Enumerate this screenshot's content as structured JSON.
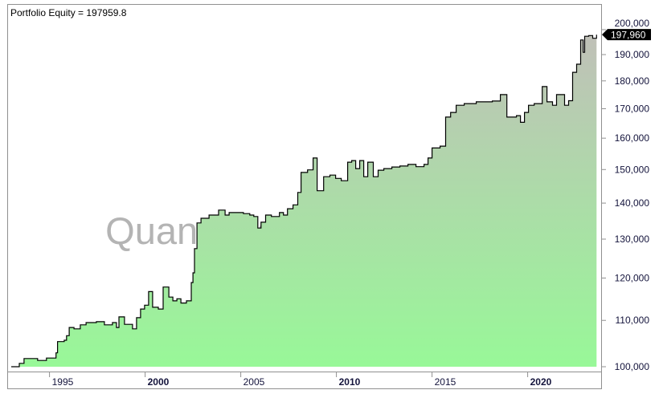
{
  "chart_data": {
    "type": "area",
    "title": "Portfolio Equity = 197959.8",
    "watermark": "QuantifiedStrategies.com",
    "y_scale": "log",
    "ylim": [
      100000,
      200000
    ],
    "xlim": [
      1993.0,
      2023.6
    ],
    "y_ticks": [
      100000,
      110000,
      120000,
      130000,
      140000,
      150000,
      160000,
      170000,
      180000,
      190000,
      200000
    ],
    "y_tick_labels": [
      "100,000",
      "110,000",
      "120,000",
      "130,000",
      "140,000",
      "150,000",
      "160,000",
      "170,000",
      "180,000",
      "190,000",
      "200,000"
    ],
    "x_ticks": [
      1995,
      2000,
      2005,
      2010,
      2015,
      2020
    ],
    "x_tick_labels": [
      "1995",
      "2000",
      "2005",
      "2010",
      "2015",
      "2020"
    ],
    "x_bold_ticks": [
      "2000",
      "2010",
      "2020"
    ],
    "last_value_label": "197,960",
    "last_value": 197960,
    "grid": false,
    "colors": {
      "fill_bottom": "#98f898",
      "fill_top": "#c0c0b8",
      "line": "#000000",
      "axis_text": "#14143c",
      "watermark": "#b4b4b4"
    },
    "series": [
      {
        "x": [
          1993.0,
          1993.34,
          1993.42,
          1993.67,
          1994.34,
          1994.38,
          1994.76,
          1994.84,
          1995.34,
          1995.42,
          1995.77,
          1995.89,
          1996.03,
          1996.28,
          1996.61,
          1996.91,
          1997.45,
          1997.87,
          1998.29,
          1998.5,
          1998.63,
          1998.92,
          1999.34,
          1999.55,
          1999.76,
          1999.97,
          2000.18,
          2000.39,
          2000.69,
          2000.94,
          2001.24,
          2001.45,
          2001.66,
          2001.87,
          2002.16,
          2002.41,
          2002.5,
          2002.58,
          2002.71,
          2002.92,
          2003.34,
          2003.67,
          2003.84,
          2004.18,
          2004.39,
          2004.97,
          2005.14,
          2005.47,
          2005.68,
          2005.89,
          2006.06,
          2006.3,
          2006.6,
          2007.02,
          2007.23,
          2007.44,
          2007.73,
          2007.98,
          2008.15,
          2008.49,
          2008.78,
          2008.99,
          2009.33,
          2009.66,
          2009.96,
          2010.25,
          2010.59,
          2010.8,
          2011.01,
          2011.22,
          2011.43,
          2011.64,
          2011.93,
          2012.18,
          2012.48,
          2012.9,
          2013.32,
          2013.74,
          2014.16,
          2014.58,
          2014.79,
          2015.0,
          2015.42,
          2015.71,
          2015.97,
          2016.26,
          2016.68,
          2017.31,
          2018.15,
          2018.57,
          2018.91,
          2019.41,
          2019.62,
          2019.83,
          2020.04,
          2020.34,
          2020.76,
          2021.01,
          2021.3,
          2021.51,
          2021.93,
          2022.14,
          2022.35,
          2022.56,
          2022.77,
          2022.9,
          2022.98,
          2023.19,
          2023.4,
          2023.6
        ],
        "values": [
          100000,
          100000,
          100700,
          101700,
          101700,
          101300,
          101300,
          101800,
          102900,
          105300,
          105600,
          106600,
          108400,
          108100,
          109000,
          109500,
          109700,
          109000,
          109500,
          108400,
          110800,
          109100,
          108100,
          110600,
          112600,
          113500,
          116700,
          113000,
          112600,
          117800,
          115400,
          114500,
          115000,
          114000,
          114500,
          118900,
          121300,
          127500,
          134400,
          135700,
          136600,
          136600,
          138000,
          136600,
          137300,
          137300,
          137000,
          136600,
          136200,
          133000,
          134600,
          136600,
          136200,
          137300,
          136600,
          138400,
          139500,
          143100,
          149100,
          149900,
          153600,
          143600,
          147800,
          148300,
          147300,
          146600,
          152300,
          152800,
          150300,
          152800,
          147800,
          152300,
          147800,
          149800,
          150300,
          150800,
          151100,
          151600,
          150900,
          151600,
          153600,
          156800,
          157400,
          167100,
          168700,
          171200,
          171800,
          172400,
          172700,
          175000,
          167100,
          167600,
          165300,
          168700,
          171200,
          171800,
          177900,
          172400,
          171200,
          175000,
          171200,
          172800,
          183200,
          186300,
          195800,
          190900,
          197300,
          197600,
          196500,
          197960
        ]
      }
    ]
  }
}
